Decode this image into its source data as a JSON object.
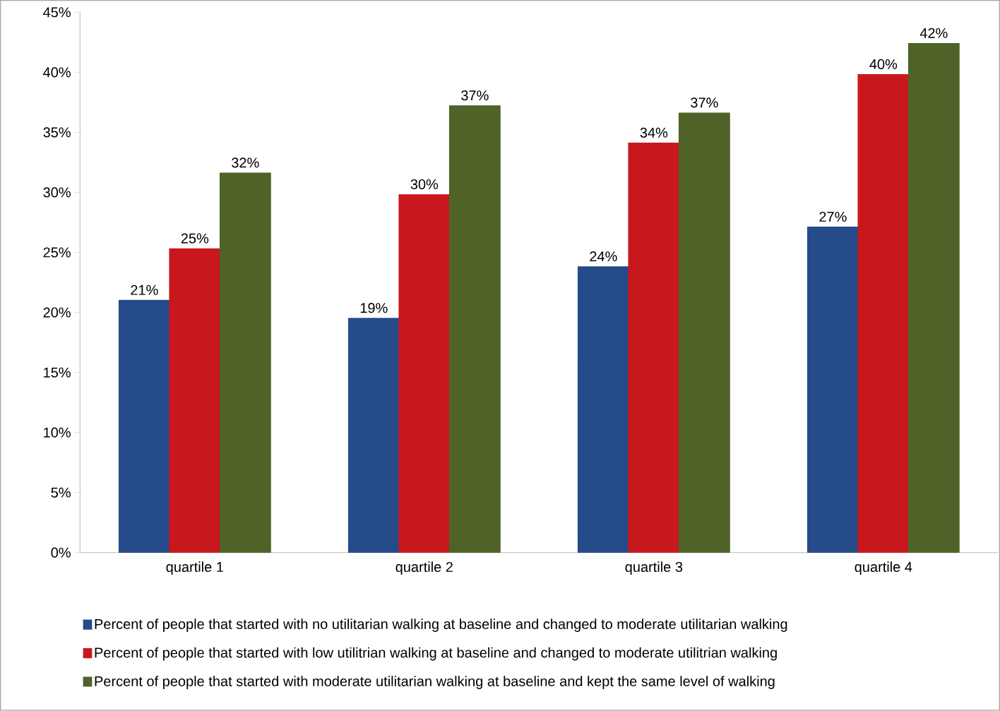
{
  "chart_data": {
    "type": "bar",
    "categories": [
      "quartile 1",
      "quartile 2",
      "quartile 3",
      "quartile 4"
    ],
    "series": [
      {
        "name": "Percent of people that started with no utilitarian walking at baseline and changed to moderate utilitarian  walking",
        "color": "#254b8a",
        "values": [
          21.0,
          19.5,
          23.8,
          27.1
        ],
        "value_labels": [
          "21%",
          "19%",
          "24%",
          "27%"
        ]
      },
      {
        "name": "Percent of people that started with  low utilitrian walking at baseline and changed to moderate utilitrian walking",
        "color": "#c8181e",
        "values": [
          25.3,
          29.8,
          34.1,
          39.8
        ],
        "value_labels": [
          "25%",
          "30%",
          "34%",
          "40%"
        ]
      },
      {
        "name": "Percent of people that started with moderate utilitarian walking at baseline and kept the same level of walking",
        "color": "#4f6228",
        "values": [
          31.6,
          37.2,
          36.6,
          42.4
        ],
        "value_labels": [
          "32%",
          "37%",
          "37%",
          "42%"
        ]
      }
    ],
    "ylim": [
      0,
      45
    ],
    "yticks": [
      {
        "value": 0,
        "label": "0%"
      },
      {
        "value": 5,
        "label": "5%"
      },
      {
        "value": 10,
        "label": "10%"
      },
      {
        "value": 15,
        "label": "15%"
      },
      {
        "value": 20,
        "label": "20%"
      },
      {
        "value": 25,
        "label": "25%"
      },
      {
        "value": 30,
        "label": "30%"
      },
      {
        "value": 35,
        "label": "35%"
      },
      {
        "value": 40,
        "label": "40%"
      },
      {
        "value": 45,
        "label": "45%"
      }
    ],
    "grid": false,
    "legend": "bottom"
  }
}
